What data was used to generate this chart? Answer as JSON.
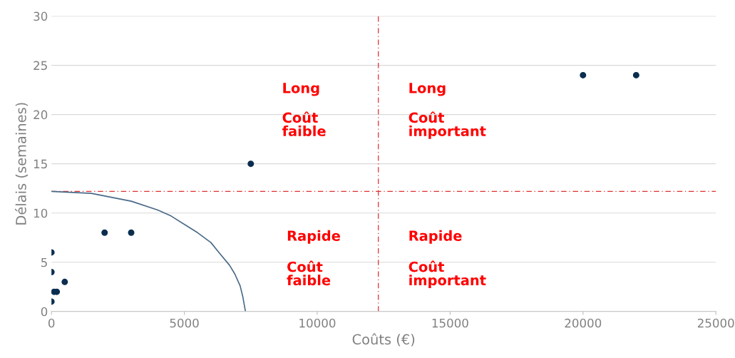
{
  "chart_data": {
    "type": "scatter",
    "xlabel": "Coûts (€)",
    "ylabel": "Délais (semaines)",
    "xlim": [
      0,
      25000
    ],
    "xticks": [
      0,
      5000,
      10000,
      15000,
      20000,
      25000
    ],
    "ylim": [
      0,
      30
    ],
    "yticks": [
      0,
      5,
      10,
      15,
      20,
      25,
      30
    ],
    "grid": "y",
    "series": [
      {
        "color": "#0b2e4f",
        "marker": "circle",
        "x": [
          0,
          0,
          0,
          100,
          200,
          500,
          2000,
          3000,
          7500,
          20000,
          22000
        ],
        "values": [
          6,
          4,
          1,
          2,
          2,
          3,
          8,
          8,
          15,
          24,
          24
        ]
      },
      {
        "type": "line",
        "color": "#4a6a88",
        "line_style": "solid",
        "x": [
          0,
          1500,
          3000,
          4000,
          4500,
          5500,
          6000,
          6300,
          6700,
          6900,
          7100,
          7200,
          7300
        ],
        "values": [
          12.2,
          12.0,
          11.2,
          10.3,
          9.7,
          8.0,
          7.0,
          6.0,
          4.7,
          3.8,
          2.6,
          1.5,
          0
        ]
      }
    ],
    "ref_lines": [
      {
        "axis": "x",
        "value": 12300,
        "color": "#e03030",
        "line_style": "dashdot"
      },
      {
        "axis": "y",
        "value": 12.2,
        "color": "#e03030",
        "line_style": "dashdot"
      }
    ],
    "annotations": [
      "Long",
      "Coût\nfaible",
      "Long",
      "Coût\nimportant",
      "Rapide",
      "Coût\nfaible",
      "Rapide",
      "Coût\nimportant"
    ]
  }
}
